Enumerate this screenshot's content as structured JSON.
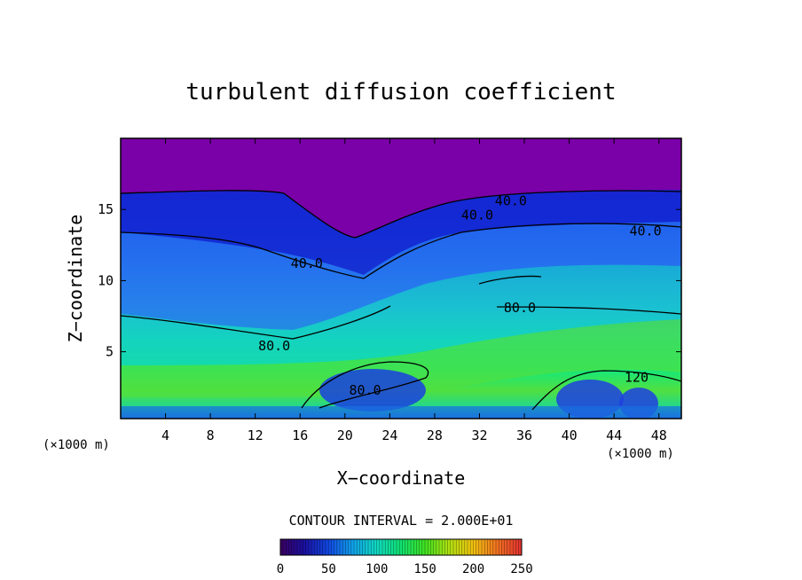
{
  "chart_data": {
    "type": "heatmap",
    "title": "turbulent diffusion coefficient",
    "xlabel": "X−coordinate",
    "ylabel": "Z−coordinate",
    "x_unit_left": "(×1000 m)",
    "x_unit_right": "(×1000 m)",
    "xlim": [
      0,
      50
    ],
    "ylim": [
      0.3,
      20
    ],
    "x_ticks": [
      4,
      8,
      12,
      16,
      20,
      24,
      28,
      32,
      36,
      40,
      44,
      48
    ],
    "x_tick_labels": [
      "4",
      "8",
      "12",
      "16",
      "20",
      "24",
      "28",
      "32",
      "36",
      "40",
      "44",
      "48"
    ],
    "y_ticks": [
      5,
      10,
      15
    ],
    "y_tick_labels": [
      "5",
      "10",
      "15"
    ],
    "contour_interval_text": "CONTOUR INTERVAL = 2.000E+01",
    "colorbar": {
      "range": [
        0,
        250
      ],
      "ticks": [
        0,
        50,
        100,
        150,
        200,
        250
      ],
      "tick_labels": [
        "0",
        "50",
        "100",
        "150",
        "200",
        "250"
      ]
    },
    "contour_labels": [
      {
        "text": "40.0",
        "x": 34.8,
        "z": 15.6
      },
      {
        "text": "40.0",
        "x": 31.8,
        "z": 14.6
      },
      {
        "text": "40.0",
        "x": 46.8,
        "z": 13.5
      },
      {
        "text": "40.0",
        "x": 16.6,
        "z": 11.2
      },
      {
        "text": "80.0",
        "x": 35.6,
        "z": 8.1
      },
      {
        "text": "80.0",
        "x": 13.7,
        "z": 5.4
      },
      {
        "text": "80.0",
        "x": 21.8,
        "z": 2.3
      },
      {
        "text": "120",
        "x": 46.0,
        "z": 3.2
      }
    ]
  }
}
